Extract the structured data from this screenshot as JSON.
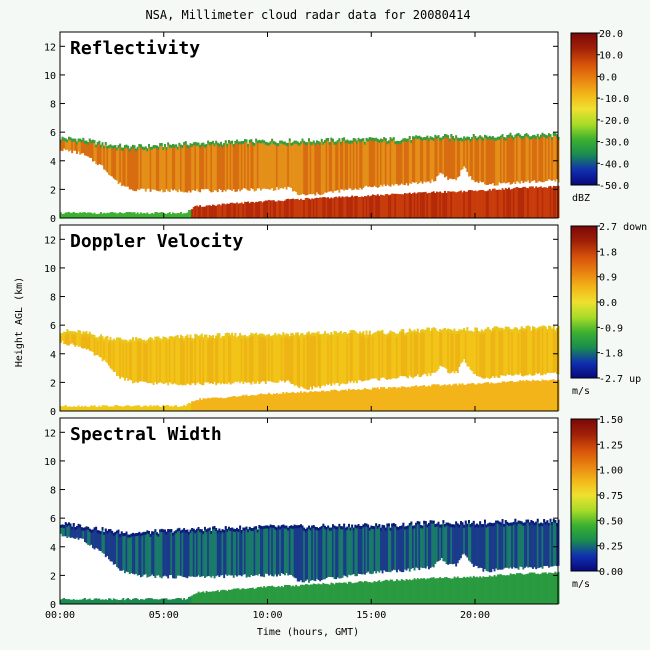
{
  "title": "NSA, Millimeter cloud radar data for 20080414",
  "xlabel": "Time (hours, GMT)",
  "ylabel": "Height AGL (km)",
  "chart_data": [
    {
      "type": "heatmap",
      "name": "Reflectivity",
      "xlim": [
        0,
        24
      ],
      "x_ticks": [
        0,
        5,
        10,
        15,
        20
      ],
      "x_tick_labels": [
        "00:00",
        "05:00",
        "10:00",
        "15:00",
        "20:00"
      ],
      "ylim": [
        0,
        13
      ],
      "y_ticks": [
        0,
        2,
        4,
        6,
        8,
        10,
        12
      ],
      "colorbar": {
        "range": [
          -50,
          20
        ],
        "tick_labels": [
          "20.0",
          "10.0",
          "0.0",
          "-10.0",
          "-20.0",
          "-30.0",
          "-40.0",
          "-50.0"
        ],
        "unit": "dBZ"
      },
      "cloud_layer": {
        "top_km": [
          [
            0,
            5.6
          ],
          [
            1,
            5.5
          ],
          [
            2,
            5.2
          ],
          [
            3,
            5.0
          ],
          [
            4,
            5.0
          ],
          [
            6,
            5.2
          ],
          [
            8,
            5.3
          ],
          [
            10,
            5.4
          ],
          [
            12,
            5.4
          ],
          [
            14,
            5.5
          ],
          [
            16,
            5.5
          ],
          [
            18,
            5.7
          ],
          [
            20,
            5.7
          ],
          [
            22,
            5.8
          ],
          [
            24,
            5.8
          ]
        ],
        "base_km": [
          [
            0,
            4.8
          ],
          [
            1,
            4.5
          ],
          [
            2,
            3.6
          ],
          [
            2.8,
            2.4
          ],
          [
            3.5,
            2.0
          ],
          [
            5,
            1.9
          ],
          [
            7,
            1.9
          ],
          [
            10,
            2.0
          ],
          [
            11,
            2.1
          ],
          [
            11.5,
            1.6
          ],
          [
            12,
            1.6
          ],
          [
            13,
            1.8
          ],
          [
            15,
            2.2
          ],
          [
            17,
            2.4
          ],
          [
            18,
            2.6
          ],
          [
            18.3,
            3.2
          ],
          [
            18.7,
            2.7
          ],
          [
            19.1,
            2.7
          ],
          [
            19.4,
            3.6
          ],
          [
            19.8,
            2.7
          ],
          [
            20.5,
            2.3
          ],
          [
            22,
            2.5
          ],
          [
            24,
            2.6
          ]
        ]
      },
      "low_layer": {
        "top_km": [
          [
            0,
            0.35
          ],
          [
            6,
            0.35
          ],
          [
            6.5,
            0.8
          ],
          [
            10,
            1.2
          ],
          [
            14,
            1.5
          ],
          [
            18,
            1.8
          ],
          [
            20,
            1.9
          ],
          [
            22,
            2.1
          ],
          [
            24,
            2.2
          ]
        ],
        "base_km": [
          [
            0,
            0
          ],
          [
            24,
            0
          ]
        ]
      }
    },
    {
      "type": "heatmap",
      "name": "Doppler Velocity",
      "xlim": [
        0,
        24
      ],
      "x_ticks": [
        0,
        5,
        10,
        15,
        20
      ],
      "x_tick_labels": [
        "00:00",
        "05:00",
        "10:00",
        "15:00",
        "20:00"
      ],
      "ylim": [
        0,
        13
      ],
      "y_ticks": [
        0,
        2,
        4,
        6,
        8,
        10,
        12
      ],
      "colorbar": {
        "range": [
          -2.7,
          2.7
        ],
        "tick_labels": [
          "2.7 down",
          "1.8",
          "0.9",
          "0.0",
          "-0.9",
          "-1.8",
          "-2.7 up"
        ],
        "unit": "m/s"
      }
    },
    {
      "type": "heatmap",
      "name": "Spectral Width",
      "xlim": [
        0,
        24
      ],
      "x_ticks": [
        0,
        5,
        10,
        15,
        20
      ],
      "x_tick_labels": [
        "00:00",
        "05:00",
        "10:00",
        "15:00",
        "20:00"
      ],
      "ylim": [
        0,
        13
      ],
      "y_ticks": [
        0,
        2,
        4,
        6,
        8,
        10,
        12
      ],
      "colorbar": {
        "range": [
          0,
          1.5
        ],
        "tick_labels": [
          "1.50",
          "1.25",
          "1.00",
          "0.75",
          "0.50",
          "0.25",
          "0.00"
        ],
        "unit": "m/s"
      }
    }
  ],
  "colors": {
    "background": "#f5f9f5",
    "axis": "#000000",
    "colormap": [
      "#08087a",
      "#1030b0",
      "#1a8c50",
      "#3cb030",
      "#a8dc28",
      "#f0e030",
      "#f2b418",
      "#e88010",
      "#d4500a",
      "#a02008",
      "#7a0808"
    ],
    "reflectivity_fill": [
      "#e49018",
      "#d86c10"
    ],
    "doppler_fill": [
      "#f2c418",
      "#eeb414"
    ],
    "spectral_fill": [
      "#1a3a8a",
      "#1a7a6a"
    ]
  }
}
